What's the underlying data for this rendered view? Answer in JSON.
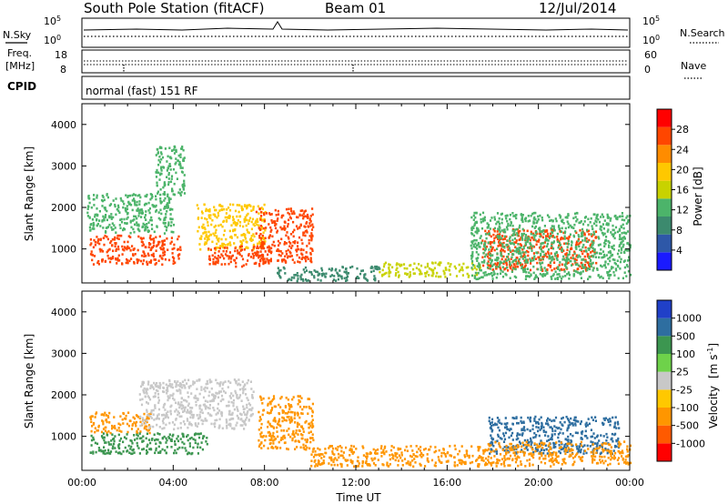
{
  "header": {
    "station": "South Pole Station (fitACF)",
    "beam": "Beam 01",
    "date": "12/Jul/2014"
  },
  "panel_nsky": {
    "left_label": "N.Sky",
    "left_ticks": [
      "10^5",
      "10^0"
    ],
    "right_ticks": [
      "10^5",
      "10^0"
    ],
    "right_label": "N.Search"
  },
  "panel_freq": {
    "left_label_1": "Freq.",
    "left_label_2": "[MHz]",
    "left_ticks": [
      "18",
      "8"
    ],
    "right_ticks": [
      "60",
      "0"
    ],
    "right_label": "Nave"
  },
  "panel_cpid": {
    "label": "CPID",
    "program": "normal (fast) 151 RF"
  },
  "colors": {
    "power_scale": [
      "#1a1aff",
      "#2e58a8",
      "#3c8a6e",
      "#4cb46a",
      "#c8d200",
      "#ffc800",
      "#ff8c00",
      "#ff4600",
      "#ff0000"
    ],
    "velocity_scale": [
      "#ff0000",
      "#ff5a00",
      "#ff9600",
      "#ffc800",
      "#c8c8c8",
      "#6ed24a",
      "#3c9650",
      "#2e6ea0",
      "#2040c8"
    ]
  },
  "chart_data": [
    {
      "type": "heatmap",
      "name": "power",
      "ylabel": "Slant Range [km]",
      "ylim": [
        180,
        4500
      ],
      "yticks": [
        "1000",
        "2000",
        "3000",
        "4000"
      ],
      "xlim_hours": [
        0,
        24
      ],
      "colorbar": {
        "label": "Power [dB]",
        "ticks": [
          "4",
          "8",
          "12",
          "16",
          "20",
          "24",
          "28"
        ],
        "range": [
          0,
          32
        ]
      },
      "echo_regions": [
        {
          "t": [
            0.3,
            4.3
          ],
          "r": [
            650,
            1350
          ],
          "value": 26
        },
        {
          "t": [
            0.2,
            4.0
          ],
          "r": [
            1400,
            2350
          ],
          "value": 14
        },
        {
          "t": [
            3.2,
            4.5
          ],
          "r": [
            2300,
            3500
          ],
          "value": 13
        },
        {
          "t": [
            5.0,
            8.0
          ],
          "r": [
            1000,
            2100
          ],
          "value": 20
        },
        {
          "t": [
            5.5,
            8.2
          ],
          "r": [
            600,
            1100
          ],
          "value": 27
        },
        {
          "t": [
            7.6,
            10.1
          ],
          "r": [
            700,
            2000
          ],
          "value": 25
        },
        {
          "t": [
            8.5,
            13.0
          ],
          "r": [
            250,
            600
          ],
          "value": 10
        },
        {
          "t": [
            13.0,
            17.5
          ],
          "r": [
            350,
            700
          ],
          "value": 17
        },
        {
          "t": [
            17.5,
            22.5
          ],
          "r": [
            500,
            1500
          ],
          "value": 27
        },
        {
          "t": [
            17.0,
            24.0
          ],
          "r": [
            300,
            1900
          ],
          "value": 12
        }
      ]
    },
    {
      "type": "heatmap",
      "name": "velocity",
      "ylabel": "Slant Range [km]",
      "xlabel": "Time UT",
      "ylim": [
        180,
        4500
      ],
      "yticks": [
        "1000",
        "2000",
        "3000",
        "4000"
      ],
      "xticks": [
        "00:00",
        "04:00",
        "08:00",
        "12:00",
        "16:00",
        "20:00",
        "00:00"
      ],
      "xlim_hours": [
        0,
        24
      ],
      "colorbar": {
        "label": "Velocity",
        "unit": "[m s",
        "unit_sup": "-1",
        "unit_end": "]",
        "ticks": [
          "1000",
          "500",
          "100",
          "25",
          "-25",
          "-100",
          "-500",
          "-1000"
        ]
      },
      "echo_regions": [
        {
          "t": [
            0.3,
            3.0
          ],
          "r": [
            1100,
            1600
          ],
          "value": -300
        },
        {
          "t": [
            0.3,
            5.5
          ],
          "r": [
            600,
            1100
          ],
          "value": 150
        },
        {
          "t": [
            2.5,
            7.5
          ],
          "r": [
            1800,
            2400
          ],
          "value": 0
        },
        {
          "t": [
            2.5,
            7.5
          ],
          "r": [
            1200,
            1800
          ],
          "value": 0
        },
        {
          "t": [
            7.7,
            10.1
          ],
          "r": [
            700,
            2000
          ],
          "value": -450
        },
        {
          "t": [
            10.0,
            17.5
          ],
          "r": [
            300,
            800
          ],
          "value": -300
        },
        {
          "t": [
            17.8,
            23.5
          ],
          "r": [
            600,
            1500
          ],
          "value": 700
        },
        {
          "t": [
            17.5,
            24.0
          ],
          "r": [
            300,
            900
          ],
          "value": -200
        }
      ]
    }
  ]
}
